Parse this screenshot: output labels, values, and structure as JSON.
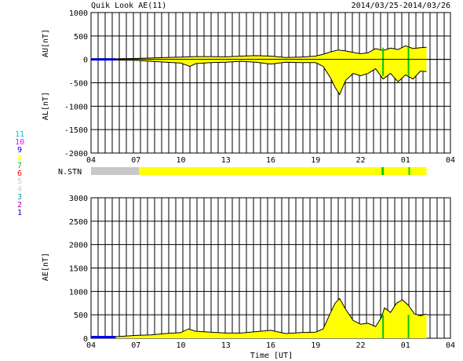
{
  "header": {
    "title": "Quik Look AE(11)",
    "date_range": "2014/03/25-2014/03/26"
  },
  "chart_data": [
    {
      "type": "area",
      "panel": "AU/AL",
      "ylabel_upper": "AU[nT]",
      "ylabel_lower": "AL[nT]",
      "ylim": [
        -2000,
        1000
      ],
      "yticks": [
        1000,
        500,
        0,
        -500,
        -1000,
        -1500,
        -2000
      ],
      "xlim": [
        4,
        28
      ],
      "xtick_labels": [
        "04",
        "07",
        "10",
        "13",
        "16",
        "19",
        "22",
        "01",
        "04"
      ],
      "grid": true,
      "series": [
        {
          "name": "AU",
          "x": [
            4,
            4.5,
            5,
            5.6,
            6,
            7,
            8,
            9,
            10,
            11,
            12,
            13,
            14,
            15,
            16,
            17,
            18,
            19,
            19.5,
            20,
            20.5,
            21,
            21.5,
            22,
            22.5,
            23,
            23.5,
            24,
            24.5,
            25,
            25.5,
            26,
            26.4
          ],
          "values": [
            5,
            6,
            8,
            10,
            15,
            20,
            30,
            40,
            50,
            60,
            60,
            55,
            70,
            80,
            70,
            40,
            50,
            70,
            110,
            160,
            200,
            180,
            150,
            120,
            140,
            230,
            190,
            240,
            210,
            290,
            230,
            250,
            260
          ]
        },
        {
          "name": "AL",
          "x": [
            4,
            4.5,
            5,
            5.6,
            6,
            7,
            8,
            9,
            10,
            10.6,
            11,
            12,
            13,
            14,
            15,
            16,
            17,
            18,
            19,
            19.5,
            20,
            20.3,
            20.6,
            21,
            21.5,
            22,
            22.5,
            23,
            23.5,
            24,
            24.5,
            25,
            25.5,
            26,
            26.4
          ],
          "values": [
            -5,
            -8,
            -10,
            -12,
            -15,
            -20,
            -40,
            -60,
            -80,
            -150,
            -90,
            -70,
            -60,
            -40,
            -60,
            -100,
            -60,
            -70,
            -70,
            -150,
            -400,
            -600,
            -750,
            -450,
            -300,
            -350,
            -300,
            -200,
            -420,
            -300,
            -480,
            -330,
            -420,
            -250,
            -260
          ]
        }
      ]
    },
    {
      "type": "bar",
      "panel": "N.STN",
      "label": "N.STN",
      "x": [
        4,
        5.65,
        7.2,
        7.3,
        23.4,
        23.55,
        25.2,
        25.3,
        26.4
      ],
      "values": [
        4,
        4,
        8,
        8,
        7,
        8,
        7,
        8,
        8
      ],
      "station_colors": {
        "11": "#00c8c8",
        "10": "#ff00ff",
        "9": "#0000ff",
        "8": "#ffff00",
        "7": "#00c800",
        "6": "#ff0000",
        "5": "#c8c8c8",
        "4": "#c8c8c8",
        "3": "#00a0a0",
        "2": "#a000a0",
        "1": "#0000c8"
      }
    },
    {
      "type": "area",
      "panel": "AE",
      "ylabel": "AE[nT]",
      "xlabel": "Time [UT]",
      "ylim": [
        0,
        3000
      ],
      "yticks": [
        3000,
        2500,
        2000,
        1500,
        1000,
        500,
        0
      ],
      "xlim": [
        4,
        28
      ],
      "xtick_labels": [
        "04",
        "07",
        "10",
        "13",
        "16",
        "19",
        "22",
        "01",
        "04"
      ],
      "grid": true,
      "series": [
        {
          "name": "AE",
          "x": [
            4,
            5,
            6,
            7,
            8,
            9,
            10,
            10.5,
            11,
            12,
            13,
            14,
            15,
            16,
            17,
            18,
            19,
            19.5,
            20,
            20.3,
            20.6,
            21,
            21.5,
            22,
            22.5,
            23,
            23.4,
            23.6,
            24,
            24.4,
            24.8,
            25.2,
            25.6,
            26,
            26.4
          ],
          "values": [
            10,
            20,
            40,
            60,
            70,
            100,
            120,
            200,
            150,
            130,
            110,
            110,
            140,
            170,
            100,
            120,
            130,
            200,
            550,
            750,
            850,
            620,
            380,
            300,
            320,
            250,
            450,
            650,
            550,
            750,
            820,
            700,
            520,
            480,
            520
          ]
        }
      ]
    }
  ],
  "station_legend": [
    {
      "label": "11",
      "color": "#00c8c8"
    },
    {
      "label": "10",
      "color": "#ff00ff"
    },
    {
      "label": "9",
      "color": "#0000ff"
    },
    {
      "label": "8",
      "color": "#ffff00"
    },
    {
      "label": "7",
      "color": "#00c800"
    },
    {
      "label": "6",
      "color": "#ff0000"
    },
    {
      "label": "5",
      "color": "#c8c8c8"
    },
    {
      "label": "4",
      "color": "#c8c8c8"
    },
    {
      "label": "3",
      "color": "#00a0a0"
    },
    {
      "label": "2",
      "color": "#a000a0"
    },
    {
      "label": "1",
      "color": "#0000c8"
    }
  ],
  "colors": {
    "fill": "#ffff00",
    "line": "#000000",
    "grid": "#000000",
    "early_segment": "#0000ff",
    "marker": "#00c800"
  }
}
